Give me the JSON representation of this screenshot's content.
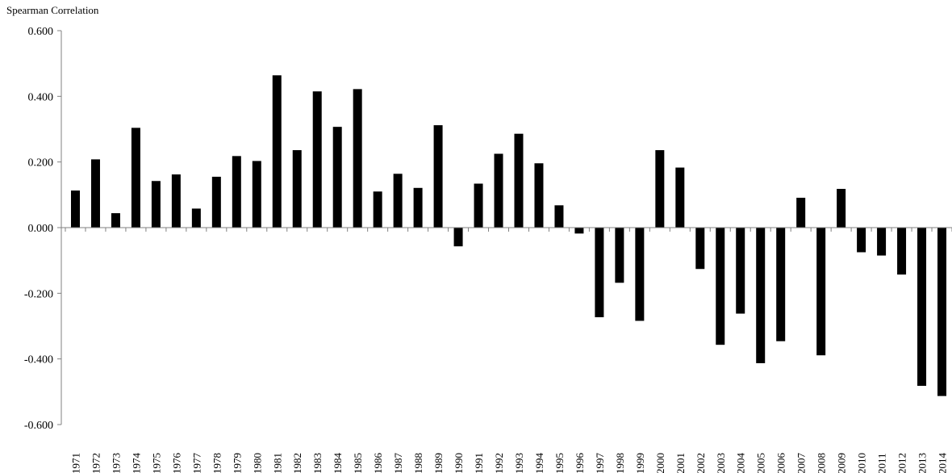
{
  "chart_data": {
    "type": "bar",
    "title": "",
    "xlabel": "",
    "ylabel": "Spearman Correlation",
    "ylim": [
      -0.6,
      0.6
    ],
    "yticks": [
      -0.6,
      -0.4,
      -0.2,
      0.0,
      0.2,
      0.4,
      0.6
    ],
    "ytick_labels": [
      "-0.600",
      "-0.400",
      "-0.200",
      "0.000",
      "0.200",
      "0.400",
      "0.600"
    ],
    "grid": false,
    "legend": "none",
    "bar_color": "#000000",
    "categories": [
      "1971",
      "1972",
      "1973",
      "1974",
      "1975",
      "1976",
      "1977",
      "1978",
      "1979",
      "1980",
      "1981",
      "1982",
      "1983",
      "1984",
      "1985",
      "1986",
      "1987",
      "1988",
      "1989",
      "1990",
      "1991",
      "1992",
      "1993",
      "1994",
      "1995",
      "1996",
      "1997",
      "1998",
      "1999",
      "2000",
      "2001",
      "2002",
      "2003",
      "2004",
      "2005",
      "2006",
      "2007",
      "2008",
      "2009",
      "2010",
      "2011",
      "2012",
      "2013",
      "2014"
    ],
    "values": [
      0.113,
      0.208,
      0.044,
      0.304,
      0.142,
      0.162,
      0.058,
      0.155,
      0.218,
      0.203,
      0.464,
      0.236,
      0.415,
      0.307,
      0.422,
      0.11,
      0.164,
      0.121,
      0.312,
      -0.057,
      0.134,
      0.225,
      0.286,
      0.196,
      0.068,
      -0.018,
      -0.273,
      -0.168,
      -0.284,
      0.236,
      0.183,
      -0.126,
      -0.357,
      -0.262,
      -0.413,
      -0.346,
      0.091,
      -0.389,
      0.118,
      -0.075,
      -0.085,
      -0.143,
      -0.482,
      -0.513
    ]
  }
}
